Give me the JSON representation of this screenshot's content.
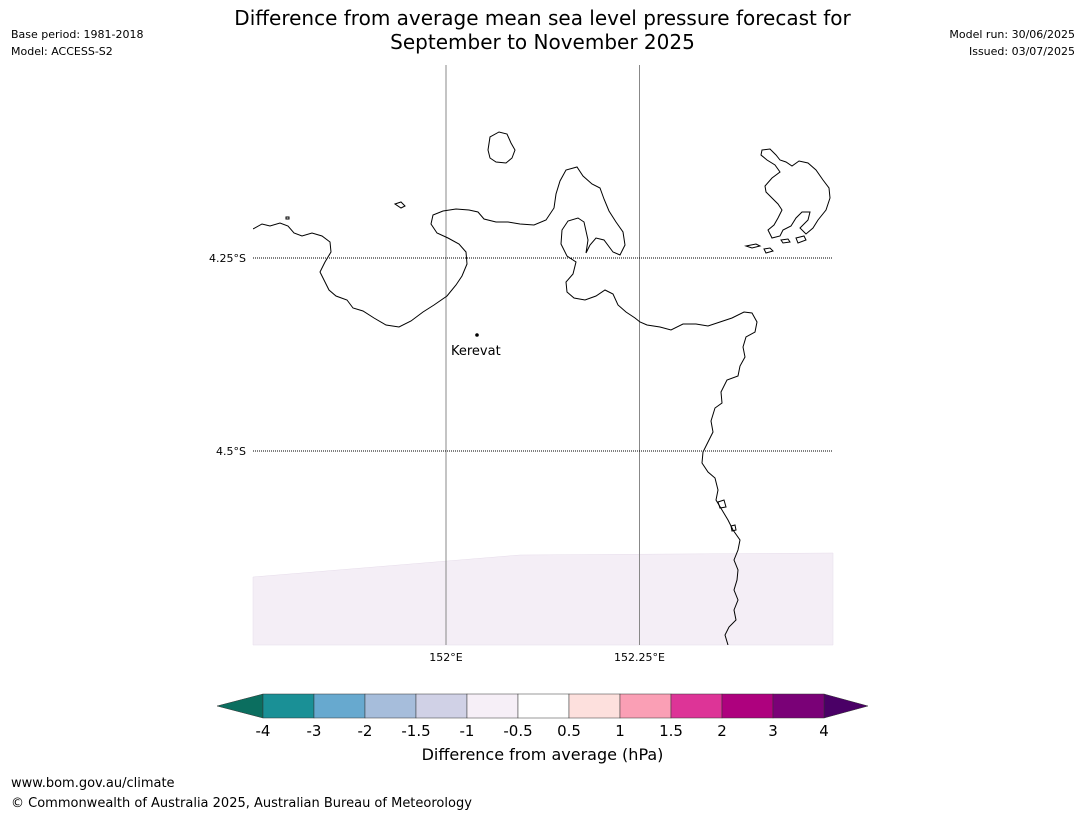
{
  "header": {
    "title_line1": "Difference from average mean sea level pressure forecast for",
    "title_line2": "September to November 2025",
    "left_line1": "Base period: 1981-2018",
    "left_line2": "Model: ACCESS-S2",
    "right_line1": "Model run: 30/06/2025",
    "right_line2": "Issued: 03/07/2025"
  },
  "map": {
    "lat_labels": [
      "4.25°S",
      "4.5°S"
    ],
    "lon_labels": [
      "152°E",
      "152.25°E"
    ],
    "place": "Kerevat",
    "shading_color": "#f4eef6",
    "coastline_color": "#000000"
  },
  "colorbar": {
    "label": "Difference from average (hPa)",
    "ticks": [
      "-4",
      "-3",
      "-2",
      "-1.5",
      "-1",
      "-0.5",
      "0.5",
      "1",
      "1.5",
      "2",
      "3",
      "4"
    ],
    "low_extend_color": "#0b6e5f",
    "high_extend_color": "#4a0066",
    "colors": [
      "#1a9096",
      "#67a9cf",
      "#a6bddb",
      "#d0d1e6",
      "#f6eff7",
      "#ffffff",
      "#fde0dd",
      "#fa9fb5",
      "#dd3497",
      "#ae017e",
      "#7a0177"
    ]
  },
  "footer": {
    "line1": "www.bom.gov.au/climate",
    "line2": "© Commonwealth of Australia 2025, Australian Bureau of Meteorology"
  }
}
